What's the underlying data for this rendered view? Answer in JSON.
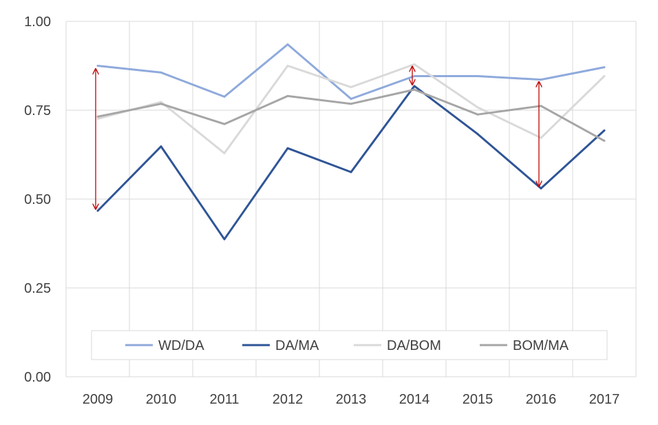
{
  "chart_data": {
    "type": "line",
    "categories": [
      "2009",
      "2010",
      "2011",
      "2012",
      "2013",
      "2014",
      "2015",
      "2016",
      "2017"
    ],
    "ylim": [
      0,
      1
    ],
    "yticks": [
      "0.00",
      "0.25",
      "0.50",
      "0.75",
      "1.00"
    ],
    "ytick_values": [
      0,
      0.25,
      0.5,
      0.75,
      1.0
    ],
    "grid": true,
    "legend_position": "bottom-inside",
    "series": [
      {
        "name": "WD/DA",
        "color": "#8faadc",
        "values": [
          0.875,
          0.856,
          0.788,
          0.935,
          0.782,
          0.846,
          0.846,
          0.836,
          0.871
        ]
      },
      {
        "name": "DA/MA",
        "color": "#2f5597",
        "values": [
          0.467,
          0.648,
          0.387,
          0.643,
          0.576,
          0.818,
          0.683,
          0.53,
          0.693
        ]
      },
      {
        "name": "DA/BOM",
        "color": "#d9d9d9",
        "values": [
          0.726,
          0.773,
          0.629,
          0.875,
          0.815,
          0.879,
          0.758,
          0.672,
          0.846
        ]
      },
      {
        "name": "BOM/MA",
        "color": "#a6a6a6",
        "values": [
          0.732,
          0.768,
          0.711,
          0.79,
          0.768,
          0.808,
          0.738,
          0.762,
          0.664
        ]
      }
    ],
    "annotations": [
      {
        "type": "double-arrow",
        "category": "2009",
        "from": 0.866,
        "to": 0.472,
        "color": "#c00000"
      },
      {
        "type": "double-arrow",
        "category": "2014",
        "from": 0.873,
        "to": 0.822,
        "color": "#c00000"
      },
      {
        "type": "double-arrow",
        "category": "2016",
        "from": 0.83,
        "to": 0.536,
        "color": "#c00000"
      }
    ],
    "title": "",
    "xlabel": "",
    "ylabel": ""
  }
}
